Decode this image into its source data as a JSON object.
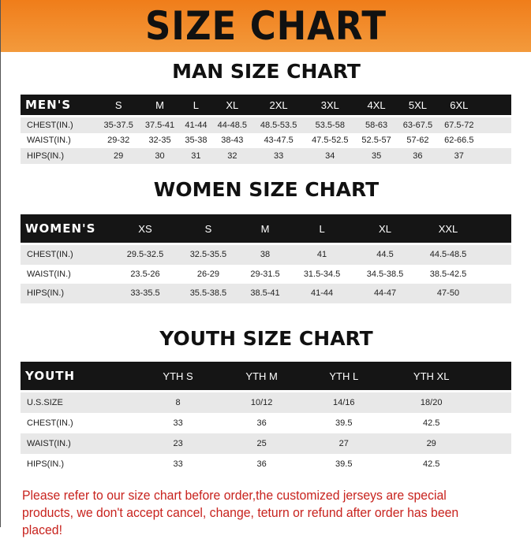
{
  "banner": "SIZE CHART",
  "men": {
    "title": "MAN SIZE CHART",
    "header": [
      "MEN'S",
      "S",
      "M",
      "L",
      "XL",
      "2XL",
      "3XL",
      "4XL",
      "5XL",
      "6XL"
    ],
    "rows": [
      [
        "CHEST(IN.)",
        "35-37.5",
        "37.5-41",
        "41-44",
        "44-48.5",
        "48.5-53.5",
        "53.5-58",
        "58-63",
        "63-67.5",
        "67.5-72"
      ],
      [
        "WAIST(IN.)",
        "29-32",
        "32-35",
        "35-38",
        "38-43",
        "43-47.5",
        "47.5-52.5",
        "52.5-57",
        "57-62",
        "62-66.5"
      ],
      [
        "HIPS(IN.)",
        "29",
        "30",
        "31",
        "32",
        "33",
        "34",
        "35",
        "36",
        "37"
      ]
    ]
  },
  "women": {
    "title": "WOMEN SIZE CHART",
    "header": [
      "WOMEN'S",
      "XS",
      "S",
      "M",
      "L",
      "XL",
      "XXL"
    ],
    "rows": [
      [
        "CHEST(IN.)",
        "29.5-32.5",
        "32.5-35.5",
        "38",
        "41",
        "44.5",
        "44.5-48.5"
      ],
      [
        "WAIST(IN.)",
        "23.5-26",
        "26-29",
        "29-31.5",
        "31.5-34.5",
        "34.5-38.5",
        "38.5-42.5"
      ],
      [
        "HIPS(IN.)",
        "33-35.5",
        "35.5-38.5",
        "38.5-41",
        "41-44",
        "44-47",
        "47-50"
      ]
    ]
  },
  "youth": {
    "title": "YOUTH SIZE CHART",
    "header": [
      "YOUTH",
      "YTH S",
      "YTH M",
      "YTH L",
      "YTH XL"
    ],
    "rows": [
      [
        "U.S.SIZE",
        "8",
        "10/12",
        "14/16",
        "18/20"
      ],
      [
        "CHEST(IN.)",
        "33",
        "36",
        "39.5",
        "42.5"
      ],
      [
        "WAIST(IN.)",
        "23",
        "25",
        "27",
        "29"
      ],
      [
        "HIPS(IN.)",
        "33",
        "36",
        "39.5",
        "42.5"
      ]
    ]
  },
  "note": "Please refer to our size chart before order,the customized jerseys are special products, we don't accept cancel, change, teturn or refund after order has been placed!",
  "colors": {
    "banner": "#f07d1a",
    "header_row": "#151515",
    "note": "#c8231e"
  }
}
